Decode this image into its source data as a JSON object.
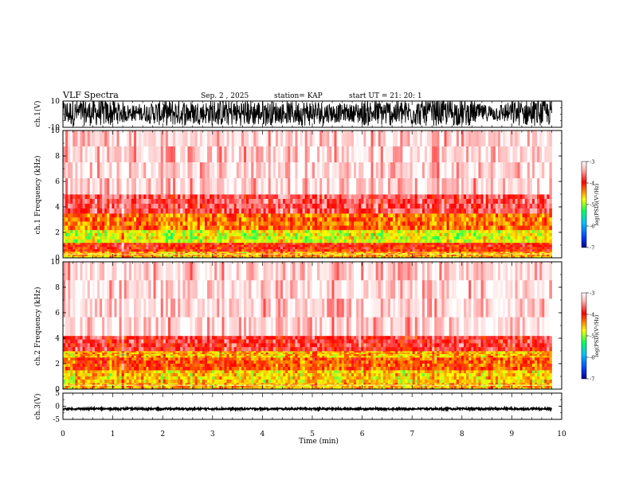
{
  "header": {
    "title": "VLF Spectra",
    "date": "Sep. 2 , 2025",
    "station": "station= KAP",
    "start": "start UT = 21: 20: 1"
  },
  "colors": {
    "background": "#ffffff",
    "waveform": "#000000",
    "colormap": [
      "#000090",
      "#0040ff",
      "#00c0ff",
      "#00ff60",
      "#ffff00",
      "#ff8000",
      "#ff0000",
      "#ffc0c0",
      "#ffffff"
    ]
  },
  "chart_data": [
    {
      "id": "ch1_waveform",
      "type": "line",
      "ylabel": "ch.1(V)",
      "ylim": [
        -10,
        10
      ],
      "yticks": [
        "10",
        "-10"
      ],
      "description_values": "dense oscillation spanning approximately -8 V to +10 V across 0-9.8 min"
    },
    {
      "id": "ch1_spectrogram",
      "type": "heatmap",
      "ylabel": "ch.1 Frequency (kHz)",
      "ylim": [
        0,
        10
      ],
      "yticks": [
        "10",
        "8",
        "6",
        "4",
        "2",
        "0"
      ],
      "bands_khz": [
        {
          "from": 0.0,
          "to": 0.5,
          "level": -4.5
        },
        {
          "from": 0.5,
          "to": 1.2,
          "level": -4.0
        },
        {
          "from": 1.2,
          "to": 2.2,
          "level": -4.8
        },
        {
          "from": 2.2,
          "to": 3.5,
          "level": -4.3
        },
        {
          "from": 3.5,
          "to": 5.0,
          "level": -3.7
        },
        {
          "from": 5.0,
          "to": 10.0,
          "level": -3.2
        }
      ],
      "colorbar": {
        "label": "log(PSD)(V²/Hz)",
        "min": -7,
        "max": -3,
        "ticks": [
          "-3",
          "-4",
          "-5",
          "-6",
          "-7"
        ]
      }
    },
    {
      "id": "ch2_spectrogram",
      "type": "heatmap",
      "ylabel": "ch.2 Frequency (kHz)",
      "ylim": [
        0,
        10
      ],
      "yticks": [
        "10",
        "8",
        "6",
        "4",
        "2",
        "0"
      ],
      "bands_khz": [
        {
          "from": 0.0,
          "to": 0.5,
          "level": -4.5
        },
        {
          "from": 0.5,
          "to": 1.5,
          "level": -4.6
        },
        {
          "from": 1.5,
          "to": 2.5,
          "level": -4.2
        },
        {
          "from": 2.5,
          "to": 3.0,
          "level": -4.5
        },
        {
          "from": 3.0,
          "to": 4.2,
          "level": -3.8
        },
        {
          "from": 4.2,
          "to": 10.0,
          "level": -3.2
        }
      ],
      "colorbar": {
        "label": "log(PSD)(V²/Hz)",
        "min": -7,
        "max": -3,
        "ticks": [
          "-3",
          "-4",
          "-5",
          "-6",
          "-7"
        ]
      }
    },
    {
      "id": "ch3_waveform",
      "type": "line",
      "ylabel": "ch.3(V)",
      "ylim": [
        -5,
        5
      ],
      "yticks": [
        "5",
        "0",
        "-5"
      ],
      "description_values": "near-constant trace around -1 V across 0-9.8 min"
    }
  ],
  "xaxis": {
    "label": "Time (min)",
    "xlim": [
      0,
      10
    ],
    "ticks": [
      "0",
      "1",
      "2",
      "3",
      "4",
      "5",
      "6",
      "7",
      "8",
      "9",
      "10"
    ],
    "data_end": 9.8
  }
}
